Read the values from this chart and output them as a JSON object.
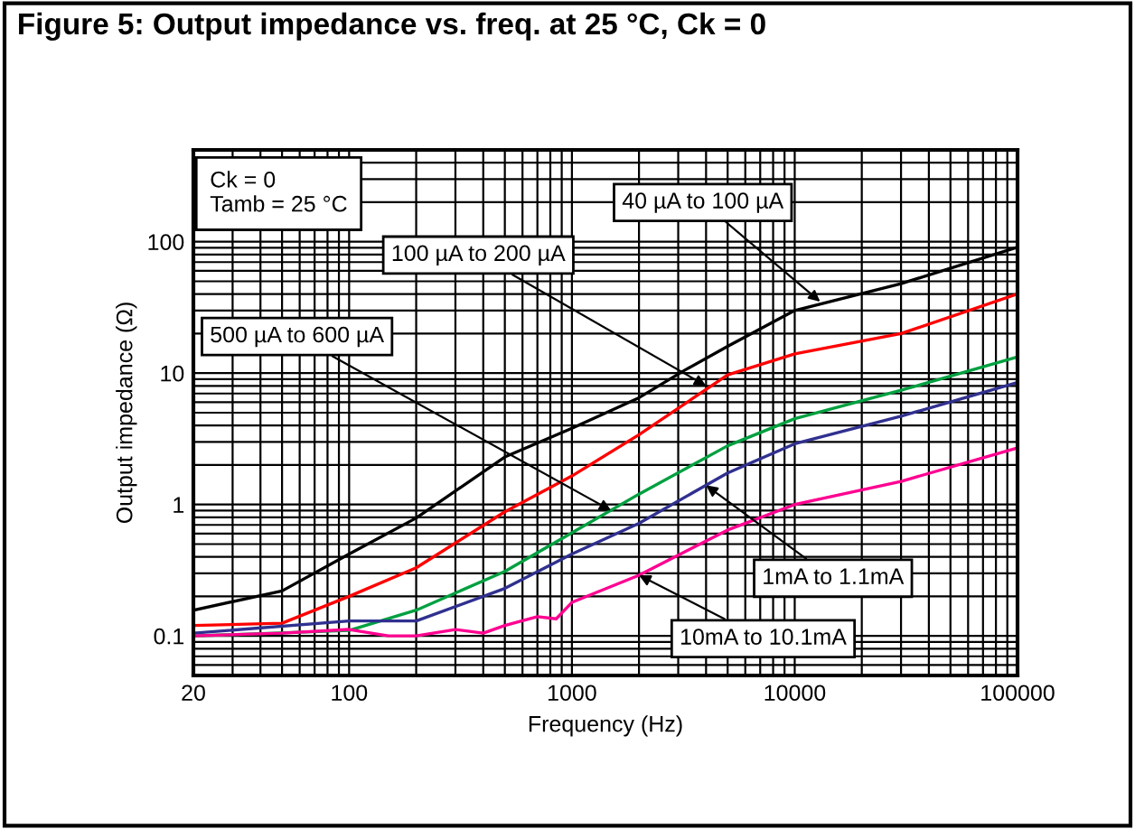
{
  "chart_data": {
    "type": "line",
    "title": "Figure 5: Output impedance vs. freq. at 25 °C, Ck = 0",
    "xlabel": "Frequency (Hz)",
    "ylabel": "Output impedance (Ω)",
    "log": "xy",
    "xlim": [
      20,
      100000
    ],
    "xticks": [
      20,
      100,
      1000,
      10000,
      100000
    ],
    "ylim": [
      0.05,
      500
    ],
    "yticks": [
      0.1,
      1,
      10,
      100
    ],
    "grid": true,
    "legend": false,
    "series": [
      {
        "color": "#000000",
        "x": [
          20,
          50,
          100,
          200,
          500,
          1000,
          2000,
          3200,
          5000,
          10000,
          30000,
          100000
        ],
        "values": [
          0.157,
          0.22,
          0.42,
          0.79,
          2.3,
          3.8,
          6.5,
          10.5,
          16,
          30,
          48,
          91
        ]
      },
      {
        "color": "#ff0000",
        "x": [
          20,
          50,
          100,
          200,
          500,
          1000,
          2000,
          5000,
          10000,
          30000,
          100000
        ],
        "values": [
          0.12,
          0.125,
          0.2,
          0.33,
          0.88,
          1.65,
          3.4,
          9.7,
          14,
          20,
          40
        ]
      },
      {
        "color": "#00a040",
        "x": [
          20,
          100,
          200,
          500,
          1000,
          2000,
          5000,
          10000,
          30000,
          100000
        ],
        "values": [
          0.1,
          0.11,
          0.157,
          0.31,
          0.61,
          1.2,
          2.8,
          4.5,
          7.4,
          13.3
        ]
      },
      {
        "color": "#303090",
        "x": [
          20,
          100,
          200,
          500,
          1000,
          2000,
          5000,
          10000,
          30000,
          100000
        ],
        "values": [
          0.105,
          0.13,
          0.13,
          0.23,
          0.42,
          0.72,
          1.74,
          2.9,
          4.7,
          8.5
        ]
      },
      {
        "color": "#ff0090",
        "x": [
          20,
          50,
          100,
          150,
          200,
          300,
          400,
          500,
          700,
          850,
          1000,
          2000,
          5000,
          10000,
          30000,
          100000
        ],
        "values": [
          0.1,
          0.105,
          0.112,
          0.1,
          0.1,
          0.112,
          0.105,
          0.12,
          0.14,
          0.135,
          0.18,
          0.29,
          0.64,
          1.0,
          1.5,
          2.7
        ]
      }
    ],
    "annotations": [
      "Ck = 0\nTamb = 25 °C",
      {
        "text": "40 µA to 100 µA",
        "x": 13000,
        "y": 35
      },
      {
        "text": "100 µA to 200 µA",
        "x": 4000,
        "y": 8
      },
      {
        "text": "500 µA to 600 µA",
        "x": 1500,
        "y": 0.9
      },
      {
        "text": "1mA to 1.1mA",
        "x": 4000,
        "y": 1.4
      },
      {
        "text": "10mA to 10.1mA",
        "x": 2000,
        "y": 0.29
      }
    ]
  }
}
